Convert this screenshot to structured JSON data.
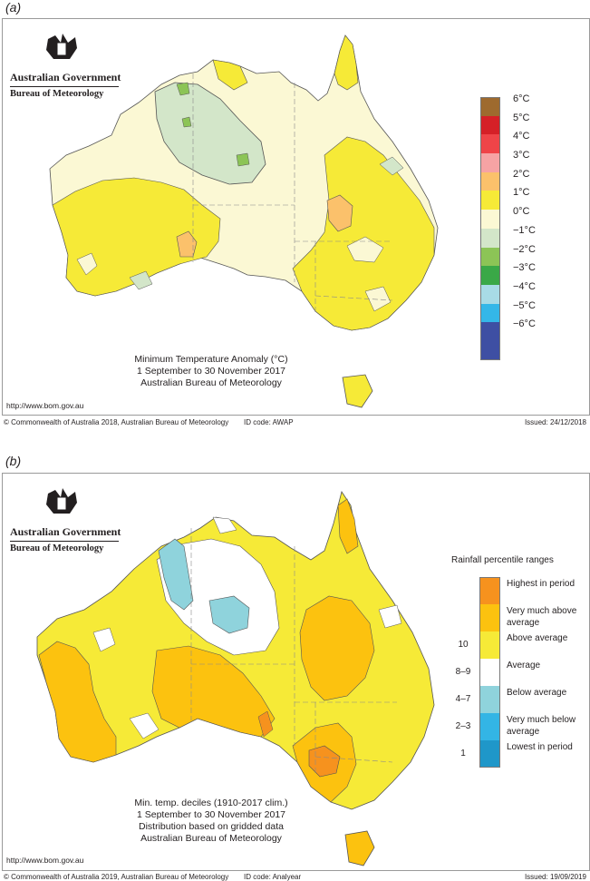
{
  "panels": [
    {
      "label": "(a)",
      "gov_line1": "Australian Government",
      "gov_line2": "Bureau of Meteorology",
      "caption_lines": [
        "Minimum Temperature Anomaly (°C)",
        "1 September to 30 November 2017",
        "Australian Bureau of Meteorology"
      ],
      "url": "http://www.bom.gov.au",
      "footer_left": "© Commonwealth of Australia 2018, Australian Bureau of Meteorology",
      "footer_id": "ID code: AWAP",
      "footer_issued": "Issued: 24/12/2018",
      "legend": [
        {
          "label": "6°C",
          "color": "#9e6a2e"
        },
        {
          "label": "5°C",
          "color": "#d52027"
        },
        {
          "label": "4°C",
          "color": "#ef4448"
        },
        {
          "label": "3°C",
          "color": "#f6a3a4"
        },
        {
          "label": "2°C",
          "color": "#fbc16b"
        },
        {
          "label": "1°C",
          "color": "#f6ea37"
        },
        {
          "label": "0°C",
          "color": "#fbf8d4"
        },
        {
          "label": "−1°C",
          "color": "#d3e6c9"
        },
        {
          "label": "−2°C",
          "color": "#8cc456"
        },
        {
          "label": "−3°C",
          "color": "#3aa847"
        },
        {
          "label": "−4°C",
          "color": "#a8dbe6"
        },
        {
          "label": "−5°C",
          "color": "#34b7e8"
        },
        {
          "label": "−6°C",
          "color": "#3e4fa3"
        },
        {
          "label": "",
          "color": "#3e4fa3"
        }
      ]
    },
    {
      "label": "(b)",
      "gov_line1": "Australian Government",
      "gov_line2": "Bureau of Meteorology",
      "caption_lines": [
        "Min. temp. deciles (1910-2017 clim.)",
        "1 September to 30 November 2017",
        "Distribution based on gridded data",
        "Australian Bureau of Meteorology"
      ],
      "url": "http://www.bom.gov.au",
      "footer_left": "© Commonwealth of Australia 2019, Australian Bureau of Meteorology",
      "footer_id": "ID code: Analyear",
      "footer_issued": "Issued: 19/09/2019",
      "legend_title": "Rainfall percentile ranges",
      "legend": [
        {
          "decile": "",
          "label": "Highest in period",
          "color": "#f6921e"
        },
        {
          "decile": "",
          "label": "Very much above average",
          "color": "#fcc20f"
        },
        {
          "decile": "10",
          "label": "Above average",
          "color": "#f6ea37"
        },
        {
          "decile": "8–9",
          "label": "Average",
          "color": "#ffffff"
        },
        {
          "decile": "4–7",
          "label": "Below average",
          "color": "#8fd3dc"
        },
        {
          "decile": "2–3",
          "label": "Very much below average",
          "color": "#33b5e5"
        },
        {
          "decile": "1",
          "label": "Lowest in period",
          "color": "#1f97c9"
        }
      ]
    }
  ]
}
